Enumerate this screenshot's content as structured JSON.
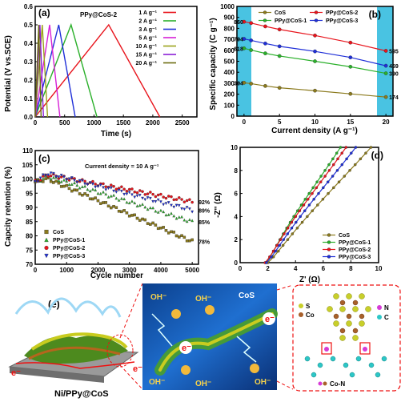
{
  "chart_data": [
    {
      "panel_label": "(a)",
      "type": "line",
      "title": "PPy@CoS-2",
      "xlabel": "Time (s)",
      "ylabel": "Potential (V vs.SCE)",
      "xlim": [
        0,
        2750
      ],
      "ylim": [
        0.0,
        0.6
      ],
      "xticks": [
        "0",
        "500",
        "1000",
        "1500",
        "2000",
        "2500"
      ],
      "yticks": [
        "0.0",
        "0.1",
        "0.2",
        "0.3",
        "0.4",
        "0.5",
        "0.6"
      ],
      "legend_position": "top-right",
      "series": [
        {
          "name": "1 A g⁻¹",
          "color": "#e8141c",
          "x": [
            0,
            1250,
            2120
          ],
          "y": [
            0.0,
            0.5,
            0.0
          ]
        },
        {
          "name": "2 A g⁻¹",
          "color": "#2bb02b",
          "x": [
            0,
            610,
            1050
          ],
          "y": [
            0.0,
            0.5,
            0.0
          ]
        },
        {
          "name": "3 A g⁻¹",
          "color": "#1f2fd8",
          "x": [
            0,
            400,
            680
          ],
          "y": [
            0.0,
            0.5,
            0.0
          ]
        },
        {
          "name": "5 A g⁻¹",
          "color": "#d61fd6",
          "x": [
            0,
            245,
            420
          ],
          "y": [
            0.0,
            0.5,
            0.0
          ]
        },
        {
          "name": "10 A g⁻¹",
          "color": "#9aa21a",
          "x": [
            0,
            120,
            210
          ],
          "y": [
            0.0,
            0.5,
            0.0
          ]
        },
        {
          "name": "15 A g⁻¹",
          "color": "#8a1fd6",
          "x": [
            0,
            80,
            140
          ],
          "y": [
            0.0,
            0.5,
            0.0
          ]
        },
        {
          "name": "20 A g⁻¹",
          "color": "#6d6d10",
          "x": [
            0,
            60,
            100
          ],
          "y": [
            0.0,
            0.5,
            0.0
          ]
        }
      ]
    },
    {
      "panel_label": "(b)",
      "type": "line",
      "xlabel": "Current density (A g⁻¹)",
      "ylabel": "Specific capacity (C g⁻¹)",
      "xlim": [
        -1,
        21
      ],
      "ylim": [
        0,
        1000
      ],
      "xticks": [
        "0",
        "5",
        "10",
        "15",
        "20"
      ],
      "yticks": [
        "0",
        "100",
        "200",
        "300",
        "400",
        "500",
        "600",
        "700",
        "800",
        "900",
        "1000"
      ],
      "x": [
        0,
        1,
        3,
        5,
        10,
        15,
        20
      ],
      "legend_position": "top",
      "series": [
        {
          "name": "CoS",
          "color": "#8b7a1d",
          "values": [
            304,
            296,
            275,
            258,
            232,
            203,
            174
          ]
        },
        {
          "name": "PPy@CoS-1",
          "color": "#2bb02b",
          "values": [
            618,
            602,
            572,
            548,
            500,
            450,
            390
          ]
        },
        {
          "name": "PPy@CoS-2",
          "color": "#e8141c",
          "values": [
            860,
            848,
            818,
            790,
            735,
            670,
            595
          ]
        },
        {
          "name": "PPy@CoS-3",
          "color": "#1f2fd8",
          "values": [
            704,
            690,
            662,
            636,
            590,
            535,
            459
          ]
        }
      ],
      "data_labels_left": [
        "860",
        "704",
        "618",
        "304"
      ],
      "data_labels_right": [
        "595",
        "459",
        "390",
        "174"
      ]
    },
    {
      "panel_label": "(c)",
      "type": "scatter",
      "annotation": "Current density = 10 A g⁻¹",
      "xlabel": "Cycle number",
      "ylabel": "Capcity retention (%)",
      "xlim": [
        0,
        5200
      ],
      "ylim": [
        70,
        110
      ],
      "xticks": [
        "0",
        "1000",
        "2000",
        "3000",
        "4000",
        "5000"
      ],
      "yticks": [
        "70",
        "75",
        "80",
        "85",
        "90",
        "95",
        "100",
        "105",
        "110"
      ],
      "legend_position": "bottom-left",
      "series": [
        {
          "name": "CoS",
          "color": "#8b7a1d",
          "start": 99,
          "peak": 100,
          "end": 78,
          "end_label": "78%"
        },
        {
          "name": "PPy@CoS-1",
          "color": "#2bb02b",
          "start": 99,
          "peak": 101,
          "end": 85,
          "end_label": "85%"
        },
        {
          "name": "PPy@CoS-2",
          "color": "#e8141c",
          "start": 99,
          "peak": 101.5,
          "end": 92,
          "end_label": "92%"
        },
        {
          "name": "PPy@CoS-3",
          "color": "#1f2fd8",
          "start": 99,
          "peak": 102,
          "end": 89,
          "end_label": "89%"
        }
      ]
    },
    {
      "panel_label": "(d)",
      "type": "line",
      "xlabel": "Z' (Ω)",
      "ylabel": "-Z'' (Ω)",
      "xlim": [
        0,
        10
      ],
      "ylim": [
        0,
        10
      ],
      "xticks": [
        "0",
        "2",
        "4",
        "6",
        "8",
        "10"
      ],
      "yticks": [
        "0",
        "2",
        "4",
        "6",
        "8",
        "10"
      ],
      "legend_position": "bottom-right",
      "series": [
        {
          "name": "CoS",
          "color": "#8b7a1d",
          "x0": 2.0,
          "x_at_top": 9.3
        },
        {
          "name": "PPy@CoS-1",
          "color": "#2bb02b",
          "x0": 1.85,
          "x_at_top": 7.1
        },
        {
          "name": "PPy@CoS-2",
          "color": "#e8141c",
          "x0": 1.8,
          "x_at_top": 7.5
        },
        {
          "name": "PPy@CoS-3",
          "color": "#1f2fd8",
          "x0": 1.9,
          "x_at_top": 8.2
        }
      ]
    }
  ],
  "schematic": {
    "panel_label": "(e)",
    "caption": "Ni/PPy@CoS",
    "ions": [
      "OH⁻",
      "OH⁻",
      "OH⁻",
      "OH⁻",
      "OH⁻"
    ],
    "electron": "e⁻",
    "cos_label": "CoS",
    "legend_s": "S",
    "legend_co": "Co",
    "legend_n": "N",
    "legend_c": "C",
    "bond_label": "Co-N"
  }
}
